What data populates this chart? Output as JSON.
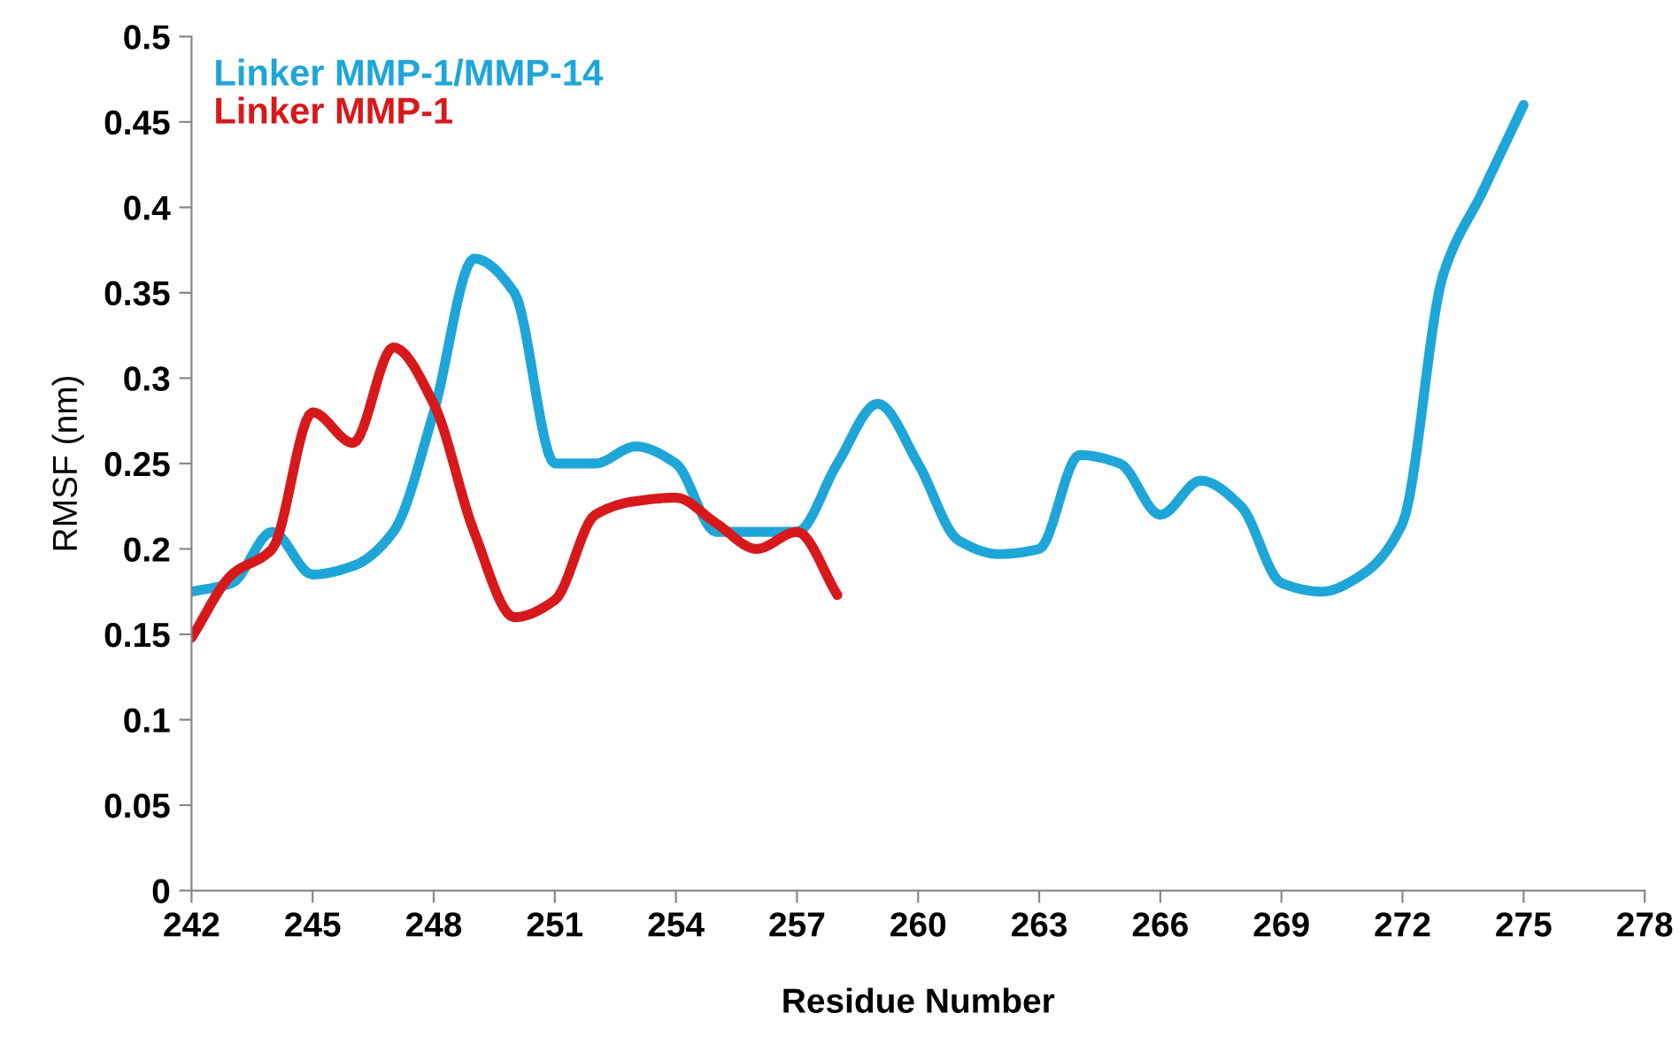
{
  "chart_data": {
    "type": "line",
    "xlabel": "Residue Number",
    "ylabel": "RMSF (nm)",
    "xlim": [
      242,
      278
    ],
    "xticks": [
      242,
      245,
      248,
      251,
      254,
      257,
      260,
      263,
      266,
      269,
      272,
      275,
      278
    ],
    "ylim": [
      0,
      0.5
    ],
    "yticks": [
      0,
      0.05,
      0.1,
      0.15,
      0.2,
      0.25,
      0.3,
      0.35,
      0.4,
      0.45,
      0.5
    ],
    "grid": false,
    "legend": "top left",
    "marker": "none",
    "line_style": "solid",
    "series": [
      {
        "name": "Linker MMP-1/MMP-14",
        "color": "#1ea6d8",
        "x": [
          242,
          243,
          244,
          245,
          246,
          247,
          248,
          249,
          250,
          251,
          252,
          253,
          254,
          255,
          256,
          257,
          258,
          259,
          260,
          261,
          262,
          263,
          264,
          265,
          266,
          267,
          268,
          269,
          270,
          271,
          272,
          273,
          274,
          275
        ],
        "values": [
          0.175,
          0.18,
          0.21,
          0.185,
          0.19,
          0.21,
          0.28,
          0.37,
          0.35,
          0.25,
          0.25,
          0.26,
          0.25,
          0.21,
          0.21,
          0.21,
          0.25,
          0.285,
          0.25,
          0.205,
          0.197,
          0.2,
          0.255,
          0.25,
          0.22,
          0.24,
          0.225,
          0.18,
          0.175,
          0.185,
          0.215,
          0.36,
          0.41,
          0.46
        ]
      },
      {
        "name": "Linker MMP-1",
        "color": "#d7191c",
        "x": [
          242,
          243,
          244,
          245,
          246,
          247,
          248,
          249,
          250,
          251,
          252,
          253,
          254,
          255,
          256,
          257,
          258
        ],
        "values": [
          0.148,
          0.185,
          0.2,
          0.28,
          0.262,
          0.318,
          0.285,
          0.21,
          0.16,
          0.17,
          0.22,
          0.228,
          0.23,
          0.215,
          0.2,
          0.21,
          0.173
        ]
      }
    ]
  }
}
